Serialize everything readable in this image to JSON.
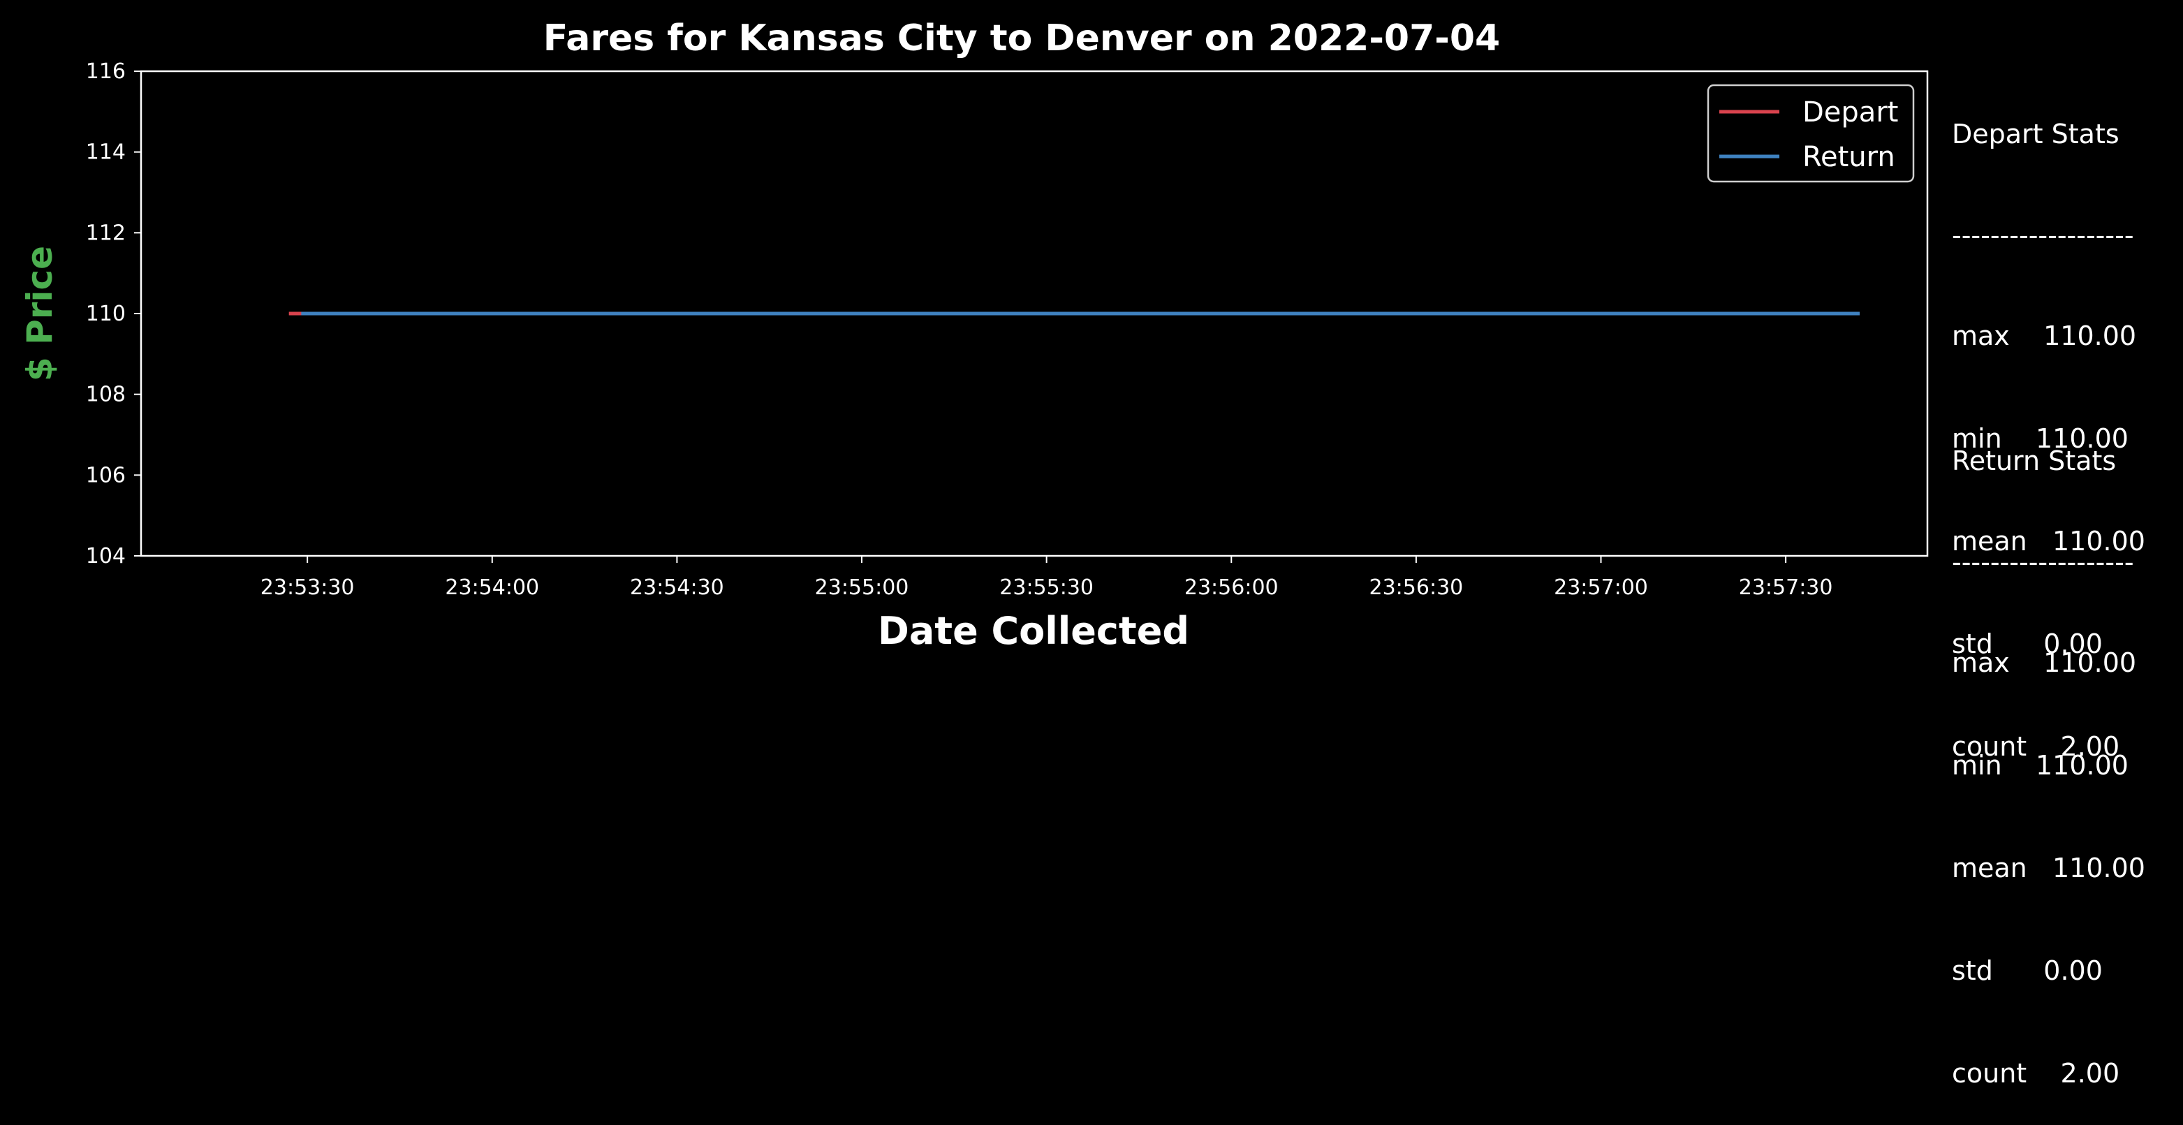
{
  "chart_data": {
    "type": "line",
    "title": "Fares for Kansas City to Denver on 2022-07-04",
    "xlabel": "Date Collected",
    "ylabel": "$ Price",
    "ylabel_color": "#4caf50",
    "ylim": [
      104,
      116
    ],
    "yticks": [
      104,
      106,
      108,
      110,
      112,
      114,
      116
    ],
    "xlim_seconds": [
      "23:53:03",
      "23:57:53"
    ],
    "xticks": [
      "23:53:30",
      "23:54:00",
      "23:54:30",
      "23:55:00",
      "23:55:30",
      "23:56:00",
      "23:56:30",
      "23:57:00",
      "23:57:30"
    ],
    "grid": false,
    "legend": "top-right",
    "series": [
      {
        "name": "Depart",
        "color": "#d9434e",
        "x": [
          "23:53:27",
          "23:57:42"
        ],
        "y": [
          110,
          110
        ]
      },
      {
        "name": "Return",
        "color": "#3f82c0",
        "x": [
          "23:53:29",
          "23:57:42"
        ],
        "y": [
          110,
          110
        ]
      }
    ]
  },
  "stats": [
    {
      "title": "Depart Stats",
      "divider": "-------------------",
      "rows": [
        "max    110.00",
        "min    110.00",
        "mean   110.00",
        "std      0.00",
        "count    2.00"
      ]
    },
    {
      "title": "Return Stats",
      "divider": "-------------------",
      "rows": [
        "max    110.00",
        "min    110.00",
        "mean   110.00",
        "std      0.00",
        "count    2.00"
      ]
    }
  ]
}
